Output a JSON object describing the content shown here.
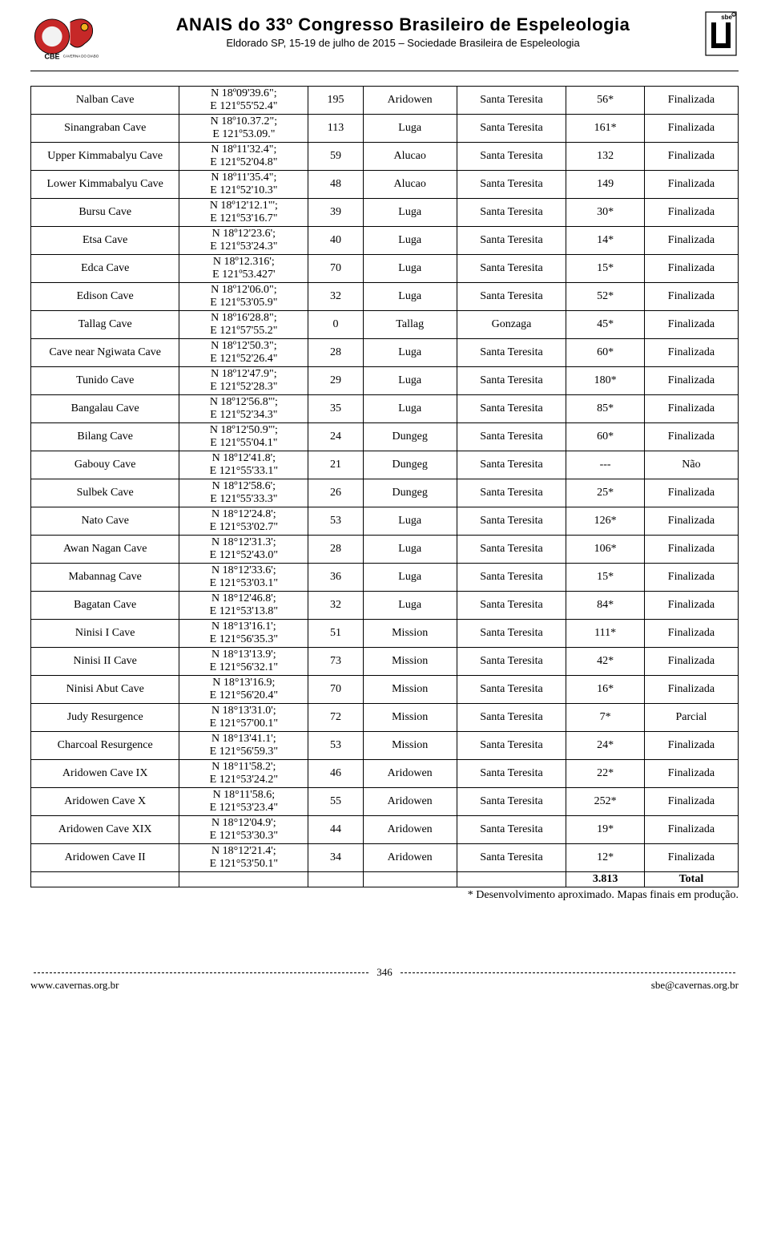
{
  "header": {
    "title": "ANAIS do 33º Congresso Brasileiro de Espeleologia",
    "subtitle": "Eldorado SP, 15-19 de julho de 2015 – Sociedade Brasileira de Espeleologia"
  },
  "table": {
    "rows": [
      {
        "name": "Nalban Cave",
        "coord": "N 18º09'39.6\"; E 121º55'52.4\"",
        "elev": "195",
        "loc": "Aridowen",
        "mun": "Santa Teresita",
        "len": "56*",
        "status": "Finalizada"
      },
      {
        "name": "Sinangraban Cave",
        "coord": "N 18º10.37.2\"; E 121º53.09.\"",
        "elev": "113",
        "loc": "Luga",
        "mun": "Santa Teresita",
        "len": "161*",
        "status": "Finalizada"
      },
      {
        "name": "Upper Kimmabalyu Cave",
        "coord": "N 18º11'32.4\"; E 121º52'04.8\"",
        "elev": "59",
        "loc": "Alucao",
        "mun": "Santa Teresita",
        "len": "132",
        "status": "Finalizada"
      },
      {
        "name": "Lower Kimmabalyu Cave",
        "coord": "N 18º11'35.4\"; E 121º52'10.3\"",
        "elev": "48",
        "loc": "Alucao",
        "mun": "Santa Teresita",
        "len": "149",
        "status": "Finalizada"
      },
      {
        "name": "Bursu Cave",
        "coord": "N 18º12'12.1\"'; E 121º53'16.7\"",
        "elev": "39",
        "loc": "Luga",
        "mun": "Santa Teresita",
        "len": "30*",
        "status": "Finalizada"
      },
      {
        "name": "Etsa Cave",
        "coord": "N 18º12'23.6'; E 121º53'24.3\"",
        "elev": "40",
        "loc": "Luga",
        "mun": "Santa Teresita",
        "len": "14*",
        "status": "Finalizada"
      },
      {
        "name": "Edca Cave",
        "coord": "N 18º12.316'; E 121º53.427'",
        "elev": "70",
        "loc": "Luga",
        "mun": "Santa Teresita",
        "len": "15*",
        "status": "Finalizada"
      },
      {
        "name": "Edison Cave",
        "coord": "N 18º12'06.0\"; E 121º53'05.9\"",
        "elev": "32",
        "loc": "Luga",
        "mun": "Santa Teresita",
        "len": "52*",
        "status": "Finalizada"
      },
      {
        "name": "Tallag Cave",
        "coord": "N 18º16'28.8\"; E 121º57'55.2\"",
        "elev": "0",
        "loc": "Tallag",
        "mun": "Gonzaga",
        "len": "45*",
        "status": "Finalizada"
      },
      {
        "name": "Cave near Ngiwata Cave",
        "coord": "N 18º12'50.3\"; E 121º52'26.4\"",
        "elev": "28",
        "loc": "Luga",
        "mun": "Santa Teresita",
        "len": "60*",
        "status": "Finalizada"
      },
      {
        "name": "Tunido Cave",
        "coord": "N 18º12'47.9\"; E 121º52'28.3\"",
        "elev": "29",
        "loc": "Luga",
        "mun": "Santa Teresita",
        "len": "180*",
        "status": "Finalizada"
      },
      {
        "name": "Bangalau Cave",
        "coord": "N 18º12'56.8\"'; E 121º52'34.3\"",
        "elev": "35",
        "loc": "Luga",
        "mun": "Santa Teresita",
        "len": "85*",
        "status": "Finalizada"
      },
      {
        "name": "Bilang Cave",
        "coord": "N 18º12'50.9\"'; E 121º55'04.1\"",
        "elev": "24",
        "loc": "Dungeg",
        "mun": "Santa Teresita",
        "len": "60*",
        "status": "Finalizada"
      },
      {
        "name": "Gabouy Cave",
        "coord": "N 18º12'41.8'; E 121°55'33.1\"",
        "elev": "21",
        "loc": "Dungeg",
        "mun": "Santa Teresita",
        "len": "---",
        "status": "Não"
      },
      {
        "name": "Sulbek Cave",
        "coord": "N 18º12'58.6'; E 121º55'33.3\"",
        "elev": "26",
        "loc": "Dungeg",
        "mun": "Santa Teresita",
        "len": "25*",
        "status": "Finalizada"
      },
      {
        "name": "Nato Cave",
        "coord": "N 18°12'24.8'; E 121°53'02.7\"",
        "elev": "53",
        "loc": "Luga",
        "mun": "Santa Teresita",
        "len": "126*",
        "status": "Finalizada"
      },
      {
        "name": "Awan Nagan Cave",
        "coord": "N 18°12'31.3'; E 121°52'43.0\"",
        "elev": "28",
        "loc": "Luga",
        "mun": "Santa Teresita",
        "len": "106*",
        "status": "Finalizada"
      },
      {
        "name": "Mabannag Cave",
        "coord": "N 18°12'33.6'; E 121°53'03.1\"",
        "elev": "36",
        "loc": "Luga",
        "mun": "Santa Teresita",
        "len": "15*",
        "status": "Finalizada"
      },
      {
        "name": "Bagatan Cave",
        "coord": "N 18°12'46.8'; E 121°53'13.8\"",
        "elev": "32",
        "loc": "Luga",
        "mun": "Santa Teresita",
        "len": "84*",
        "status": "Finalizada"
      },
      {
        "name": "Ninisi I Cave",
        "coord": "N 18°13'16.1'; E 121°56'35.3\"",
        "elev": "51",
        "loc": "Mission",
        "mun": "Santa Teresita",
        "len": "111*",
        "status": "Finalizada"
      },
      {
        "name": "Ninisi II Cave",
        "coord": "N 18°13'13.9'; E 121°56'32.1\"",
        "elev": "73",
        "loc": "Mission",
        "mun": "Santa Teresita",
        "len": "42*",
        "status": "Finalizada"
      },
      {
        "name": "Ninisi Abut Cave",
        "coord": "N 18°13'16.9; E 121°56'20.4\"",
        "elev": "70",
        "loc": "Mission",
        "mun": "Santa Teresita",
        "len": "16*",
        "status": "Finalizada"
      },
      {
        "name": "Judy Resurgence",
        "coord": "N 18°13'31.0'; E 121°57'00.1\"",
        "elev": "72",
        "loc": "Mission",
        "mun": "Santa Teresita",
        "len": "7*",
        "status": "Parcial"
      },
      {
        "name": "Charcoal Resurgence",
        "coord": "N 18°13'41.1'; E 121°56'59.3\"",
        "elev": "53",
        "loc": "Mission",
        "mun": "Santa Teresita",
        "len": "24*",
        "status": "Finalizada"
      },
      {
        "name": "Aridowen Cave IX",
        "coord": "N 18°11'58.2'; E 121°53'24.2\"",
        "elev": "46",
        "loc": "Aridowen",
        "mun": "Santa Teresita",
        "len": "22*",
        "status": "Finalizada"
      },
      {
        "name": "Aridowen Cave X",
        "coord": "N 18°11'58.6; E 121°53'23.4\"",
        "elev": "55",
        "loc": "Aridowen",
        "mun": "Santa Teresita",
        "len": "252*",
        "status": "Finalizada"
      },
      {
        "name": "Aridowen Cave XIX",
        "coord": "N 18°12'04.9'; E 121°53'30.3\"",
        "elev": "44",
        "loc": "Aridowen",
        "mun": "Santa Teresita",
        "len": "19*",
        "status": "Finalizada"
      },
      {
        "name": "Aridowen Cave II",
        "coord": "N 18°12'21.4'; E 121°53'50.1\"",
        "elev": "34",
        "loc": "Aridowen",
        "mun": "Santa Teresita",
        "len": "12*",
        "status": "Finalizada"
      }
    ],
    "total_value": "3.813",
    "total_label": "Total"
  },
  "notes": "* Desenvolvimento aproximado. Mapas finais em produção.",
  "footer": {
    "page": "346",
    "left_link": "www.cavernas.org.br",
    "right_link": "sbe@cavernas.org.br"
  },
  "colors": {
    "text": "#000000",
    "bg": "#ffffff",
    "link": "#0000cc",
    "logo_red": "#c62828",
    "logo_yellow": "#f2b01e",
    "logo_border": "#000000"
  }
}
